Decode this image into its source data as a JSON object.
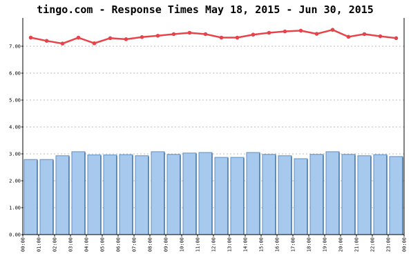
{
  "chart_data": {
    "type": "bar",
    "title": "tingo.com - Response Times May 18, 2015 - Jun 30, 2015",
    "xlabel": "",
    "ylabel": "",
    "categories": [
      "00:00",
      "01:00",
      "02:00",
      "03:00",
      "04:00",
      "05:00",
      "06:00",
      "07:00",
      "08:00",
      "09:00",
      "10:00",
      "11:00",
      "12:00",
      "13:00",
      "14:00",
      "15:00",
      "16:00",
      "17:00",
      "18:00",
      "19:00",
      "20:00",
      "21:00",
      "22:00",
      "23:00"
    ],
    "x_end_label": "00:00",
    "ylim": [
      0,
      8
    ],
    "y_ticks": [
      "0.00",
      "1.00",
      "2.00",
      "3.00",
      "4.00",
      "5.00",
      "6.00",
      "7.00"
    ],
    "grid": true,
    "series": [
      {
        "type": "bar",
        "color": "#a7c9ee",
        "values": [
          2.79,
          2.79,
          2.93,
          3.08,
          2.96,
          2.96,
          2.97,
          2.93,
          3.08,
          2.98,
          3.03,
          3.05,
          2.87,
          2.87,
          3.05,
          2.98,
          2.93,
          2.82,
          2.98,
          3.08,
          2.98,
          2.93,
          2.97,
          2.9
        ]
      },
      {
        "type": "line",
        "color": "#e8434a",
        "values": [
          7.32,
          7.2,
          7.1,
          7.32,
          7.11,
          7.3,
          7.26,
          7.34,
          7.39,
          7.45,
          7.5,
          7.45,
          7.32,
          7.32,
          7.43,
          7.5,
          7.55,
          7.58,
          7.46,
          7.61,
          7.35,
          7.45,
          7.37,
          7.3
        ]
      }
    ]
  }
}
